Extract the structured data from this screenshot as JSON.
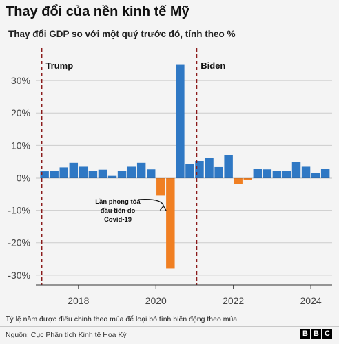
{
  "title": "Thay đổi của nền kinh tế Mỹ",
  "subtitle": "Thay đổi GDP so với một quý trước đó, tính theo %",
  "footnote": "Tỷ lệ năm được điều chỉnh theo mùa để loại bỏ tính biến động theo mùa",
  "source": "Nguồn: Cục Phân tích Kinh tế Hoa Kỳ",
  "logo": [
    "B",
    "B",
    "C"
  ],
  "colors": {
    "positive": "#2f78c4",
    "negative": "#f07f22",
    "marker": "#8b1a1a",
    "grid": "#cccccc"
  },
  "chart_data": {
    "type": "bar",
    "x": [
      2017.0,
      2017.25,
      2017.5,
      2017.75,
      2018.0,
      2018.25,
      2018.5,
      2018.75,
      2019.0,
      2019.25,
      2019.5,
      2019.75,
      2020.0,
      2020.25,
      2020.5,
      2020.75,
      2021.0,
      2021.25,
      2021.5,
      2021.75,
      2022.0,
      2022.25,
      2022.5,
      2022.75,
      2023.0,
      2023.25,
      2023.5,
      2023.75,
      2024.0,
      2024.25
    ],
    "values": [
      2.0,
      2.2,
      3.2,
      4.6,
      3.4,
      2.2,
      2.5,
      0.6,
      2.2,
      3.4,
      4.6,
      2.6,
      -5.5,
      -28.0,
      35.0,
      4.2,
      5.2,
      6.2,
      3.3,
      7.0,
      -2.0,
      -0.6,
      2.7,
      2.6,
      2.2,
      2.1,
      4.9,
      3.4,
      1.4,
      2.8
    ],
    "ylim": [
      -33,
      40
    ],
    "xlim": [
      2016.9,
      2024.55
    ],
    "yticks": [
      30,
      20,
      10,
      0,
      -10,
      -20,
      -30
    ],
    "ytick_labels": [
      "30%",
      "20%",
      "10%",
      "0%",
      "-10%",
      "-20%",
      "-30%"
    ],
    "xticks": [
      2018,
      2020,
      2022,
      2024
    ],
    "xtick_labels": [
      "2018",
      "2020",
      "2022",
      "2024"
    ],
    "grid": true,
    "markers": [
      {
        "label": "Trump",
        "x": 2017.05
      },
      {
        "label": "Biden",
        "x": 2021.05
      }
    ],
    "annotation": {
      "lines": [
        "Lần phong tỏa",
        "đầu tiên do",
        "Covid-19"
      ],
      "target_x": 2020.0,
      "target_y": -7
    }
  }
}
